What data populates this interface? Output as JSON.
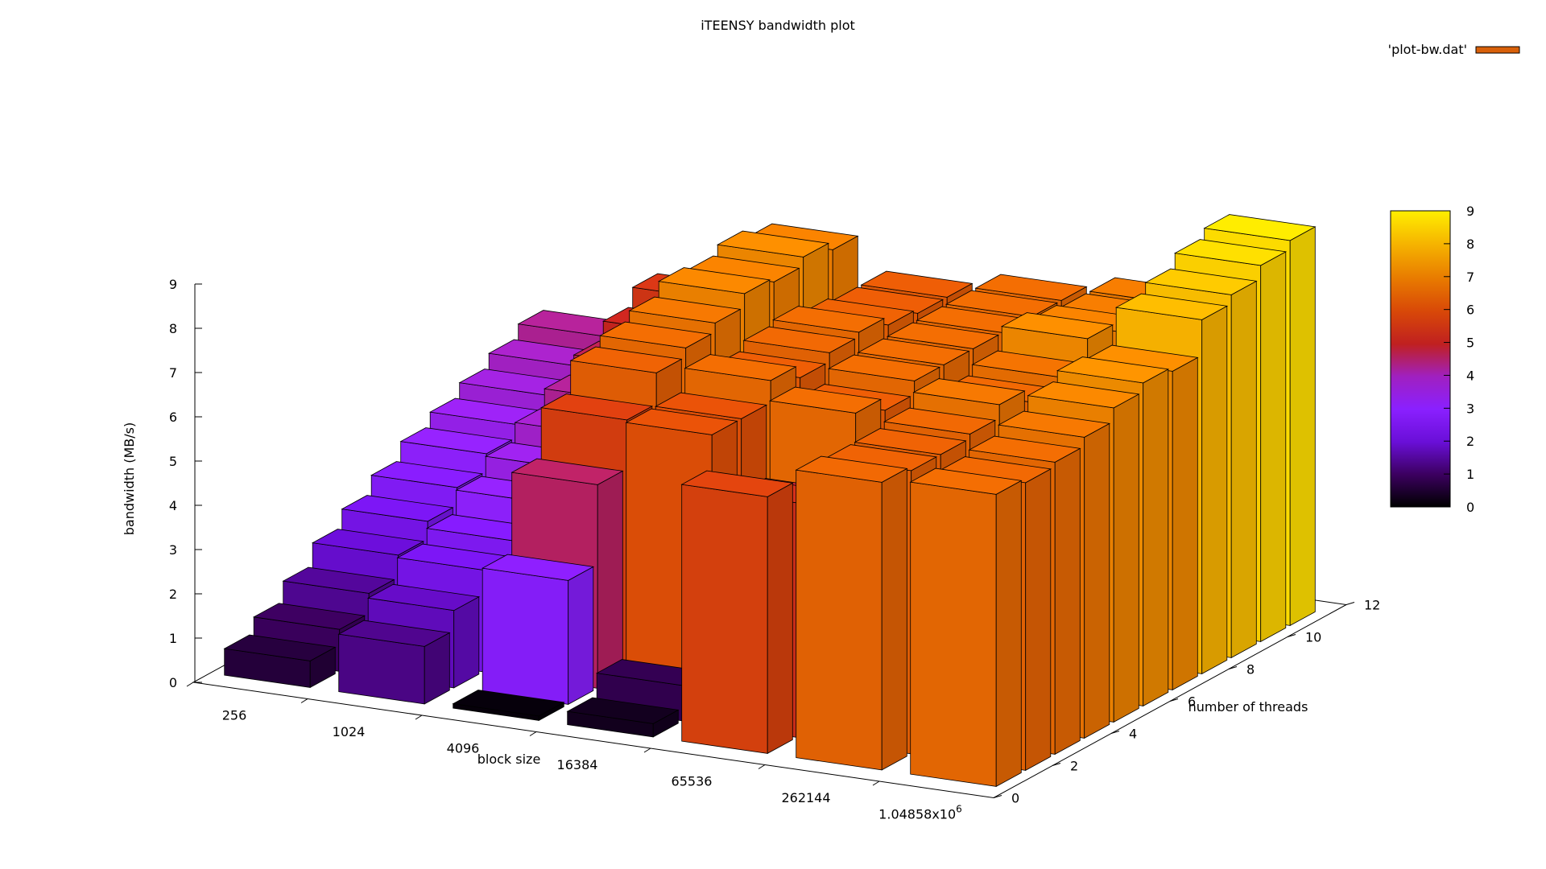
{
  "chart_data": {
    "type": "bar3d",
    "title": "iTEENSY bandwidth plot",
    "xlabel": "block size",
    "ylabel": "number of threads",
    "zlabel": "bandwidth (MB/s)",
    "legend": {
      "label": "'plot-bw.dat'",
      "color": "#d8600a",
      "position": "top-right"
    },
    "x_categories": [
      "256",
      "1024",
      "4096",
      "16384",
      "65536",
      "262144",
      "1.04858x10"
    ],
    "x_last_exponent": "6",
    "y_categories": [
      1,
      2,
      3,
      4,
      5,
      6,
      7,
      8,
      9,
      10,
      11
    ],
    "y_ticks": [
      "0",
      "2",
      "4",
      "6",
      "8",
      "10",
      "12"
    ],
    "z_ticks": [
      "0",
      "1",
      "2",
      "3",
      "4",
      "5",
      "6",
      "7",
      "8",
      "9"
    ],
    "zlim": [
      0,
      9
    ],
    "colorbar": {
      "range": [
        0,
        9
      ],
      "ticks": [
        "0",
        "1",
        "2",
        "3",
        "4",
        "5",
        "6",
        "7",
        "8",
        "9"
      ]
    },
    "values": [
      [
        0.6,
        0.95,
        1.4,
        1.9,
        2.3,
        2.7,
        3.1,
        3.4,
        3.7,
        4.0,
        4.3
      ],
      [
        1.3,
        1.75,
        2.3,
        2.6,
        3.1,
        3.5,
        3.9,
        4.3,
        4.7,
        5.1,
        5.5
      ],
      [
        0.1,
        2.8,
        4.6,
        5.7,
        6.4,
        6.6,
        6.8,
        7.1,
        7.0,
        7.2,
        7.0
      ],
      [
        0.3,
        0.8,
        6.1,
        6.1,
        6.6,
        6.3,
        6.5,
        6.6,
        6.4,
        6.3,
        6.3
      ],
      [
        5.8,
        5.3,
        4.9,
        6.6,
        6.3,
        6.6,
        6.6,
        6.6,
        6.6,
        6.6,
        6.6
      ],
      [
        6.5,
        6.4,
        6.4,
        6.5,
        6.8,
        6.5,
        6.7,
        7.2,
        7.0,
        6.9,
        6.9
      ],
      [
        6.6,
        6.5,
        6.6,
        6.8,
        7.1,
        7.3,
        7.2,
        8.0,
        8.2,
        8.5,
        8.7
      ]
    ]
  }
}
